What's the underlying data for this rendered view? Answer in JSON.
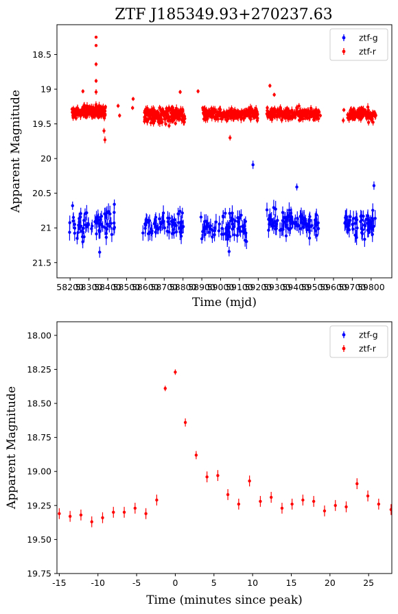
{
  "chart_data": [
    {
      "type": "scatter",
      "title": "ZTF J185349.93+270237.63",
      "xlabel": "Time (mjd)",
      "ylabel": "Apparent Magnitude",
      "xlim": [
        58130,
        59910
      ],
      "ylim": [
        21.72,
        18.07
      ],
      "y_inverted": true,
      "xticks": [
        58200,
        58300,
        58400,
        58500,
        58600,
        58700,
        58800,
        58900,
        59000,
        59100,
        59200,
        59300,
        59400,
        59500,
        59600,
        59700,
        59800
      ],
      "yticks": [
        18.5,
        19.0,
        19.5,
        20.0,
        20.5,
        21.0,
        21.5
      ],
      "grid": false,
      "legend_position": "top-right",
      "colors": {
        "ztf-g": "#0000ff",
        "ztf-r": "#ff0000"
      },
      "series": [
        {
          "name": "ztf-g",
          "segments": [
            {
              "x_start": 58195,
              "x_end": 58440,
              "count": 65,
              "mag_center": 20.95,
              "mag_spread": 0.18,
              "err_min": 0.07,
              "err_max": 0.12
            },
            {
              "x_start": 58585,
              "x_end": 58810,
              "count": 62,
              "mag_center": 20.96,
              "mag_spread": 0.17,
              "err_min": 0.07,
              "err_max": 0.12
            },
            {
              "x_start": 58895,
              "x_end": 59145,
              "count": 75,
              "mag_center": 21.0,
              "mag_spread": 0.17,
              "err_min": 0.07,
              "err_max": 0.12
            },
            {
              "x_start": 59245,
              "x_end": 59520,
              "count": 95,
              "mag_center": 20.93,
              "mag_spread": 0.16,
              "err_min": 0.07,
              "err_max": 0.12
            },
            {
              "x_start": 59660,
              "x_end": 59825,
              "count": 60,
              "mag_center": 20.95,
              "mag_spread": 0.16,
              "err_min": 0.07,
              "err_max": 0.12
            }
          ],
          "points": [
            {
              "x": 58213,
              "y": 20.68,
              "err": 0.06
            },
            {
              "x": 58435,
              "y": 20.66,
              "err": 0.07
            },
            {
              "x": 58357,
              "y": 21.35,
              "err": 0.08
            },
            {
              "x": 59172,
              "y": 20.09,
              "err": 0.06
            },
            {
              "x": 59405,
              "y": 20.41,
              "err": 0.05
            },
            {
              "x": 59815,
              "y": 20.39,
              "err": 0.06
            },
            {
              "x": 59045,
              "y": 21.34,
              "err": 0.07
            }
          ]
        },
        {
          "name": "ztf-r",
          "segments": [
            {
              "x_start": 58210,
              "x_end": 58390,
              "count": 170,
              "mag_center": 19.32,
              "mag_spread": 0.08,
              "err_min": 0.03,
              "err_max": 0.06
            },
            {
              "x_start": 58595,
              "x_end": 58810,
              "count": 200,
              "mag_center": 19.38,
              "mag_spread": 0.09,
              "err_min": 0.03,
              "err_max": 0.06
            },
            {
              "x_start": 58905,
              "x_end": 59200,
              "count": 230,
              "mag_center": 19.36,
              "mag_spread": 0.07,
              "err_min": 0.03,
              "err_max": 0.06
            },
            {
              "x_start": 59245,
              "x_end": 59525,
              "count": 220,
              "mag_center": 19.36,
              "mag_spread": 0.07,
              "err_min": 0.03,
              "err_max": 0.06
            },
            {
              "x_start": 59675,
              "x_end": 59825,
              "count": 140,
              "mag_center": 19.36,
              "mag_spread": 0.07,
              "err_min": 0.03,
              "err_max": 0.06
            }
          ],
          "points": [
            {
              "x": 58338,
              "y": 18.25,
              "err": 0.02
            },
            {
              "x": 58338,
              "y": 18.37,
              "err": 0.02
            },
            {
              "x": 58338,
              "y": 18.64,
              "err": 0.03
            },
            {
              "x": 58338,
              "y": 18.88,
              "err": 0.03
            },
            {
              "x": 58338,
              "y": 19.04,
              "err": 0.04
            },
            {
              "x": 58380,
              "y": 19.6,
              "err": 0.04
            },
            {
              "x": 58385,
              "y": 19.73,
              "err": 0.05
            },
            {
              "x": 58268,
              "y": 19.03,
              "err": 0.03
            },
            {
              "x": 58455,
              "y": 19.24,
              "err": 0.03
            },
            {
              "x": 58463,
              "y": 19.38,
              "err": 0.03
            },
            {
              "x": 58535,
              "y": 19.14,
              "err": 0.03
            },
            {
              "x": 58532,
              "y": 19.27,
              "err": 0.03
            },
            {
              "x": 58785,
              "y": 19.04,
              "err": 0.03
            },
            {
              "x": 58880,
              "y": 19.03,
              "err": 0.03
            },
            {
              "x": 58905,
              "y": 19.27,
              "err": 0.03
            },
            {
              "x": 59050,
              "y": 19.7,
              "err": 0.04
            },
            {
              "x": 59262,
              "y": 18.95,
              "err": 0.03
            },
            {
              "x": 59285,
              "y": 19.08,
              "err": 0.03
            },
            {
              "x": 59195,
              "y": 19.45,
              "err": 0.04
            },
            {
              "x": 59530,
              "y": 19.38,
              "err": 0.03
            },
            {
              "x": 59652,
              "y": 19.45,
              "err": 0.04
            },
            {
              "x": 59655,
              "y": 19.3,
              "err": 0.03
            }
          ]
        }
      ]
    },
    {
      "type": "scatter",
      "title": "",
      "xlabel": "Time (minutes since peak)",
      "ylabel": "Apparent Magnitude",
      "xlim": [
        -15.3,
        28.0
      ],
      "ylim": [
        19.75,
        17.9
      ],
      "y_inverted": true,
      "xticks": [
        -15,
        -10,
        -5,
        0,
        5,
        10,
        15,
        20,
        25
      ],
      "yticks": [
        18.0,
        18.25,
        18.5,
        18.75,
        19.0,
        19.25,
        19.5,
        19.75
      ],
      "ytick_labels": [
        "18.00",
        "18.25",
        "18.50",
        "18.75",
        "19.00",
        "19.25",
        "19.50",
        "19.75"
      ],
      "grid": false,
      "legend_position": "top-right",
      "colors": {
        "ztf-g": "#0000ff",
        "ztf-r": "#ff0000"
      },
      "series": [
        {
          "name": "ztf-g",
          "points": []
        },
        {
          "name": "ztf-r",
          "points": [
            {
              "x": -15.0,
              "y": 19.31,
              "err": 0.04
            },
            {
              "x": -13.6,
              "y": 19.33,
              "err": 0.04
            },
            {
              "x": -12.2,
              "y": 19.32,
              "err": 0.04
            },
            {
              "x": -10.8,
              "y": 19.37,
              "err": 0.04
            },
            {
              "x": -9.4,
              "y": 19.34,
              "err": 0.04
            },
            {
              "x": -8.0,
              "y": 19.3,
              "err": 0.04
            },
            {
              "x": -6.6,
              "y": 19.3,
              "err": 0.04
            },
            {
              "x": -5.2,
              "y": 19.27,
              "err": 0.04
            },
            {
              "x": -3.8,
              "y": 19.31,
              "err": 0.04
            },
            {
              "x": -2.4,
              "y": 19.21,
              "err": 0.04
            },
            {
              "x": -1.3,
              "y": 18.39,
              "err": 0.02
            },
            {
              "x": 0.0,
              "y": 18.27,
              "err": 0.02
            },
            {
              "x": 1.3,
              "y": 18.64,
              "err": 0.03
            },
            {
              "x": 2.7,
              "y": 18.88,
              "err": 0.03
            },
            {
              "x": 4.1,
              "y": 19.04,
              "err": 0.04
            },
            {
              "x": 5.5,
              "y": 19.03,
              "err": 0.04
            },
            {
              "x": 6.8,
              "y": 19.17,
              "err": 0.04
            },
            {
              "x": 8.2,
              "y": 19.24,
              "err": 0.04
            },
            {
              "x": 9.6,
              "y": 19.07,
              "err": 0.04
            },
            {
              "x": 11.0,
              "y": 19.22,
              "err": 0.04
            },
            {
              "x": 12.4,
              "y": 19.19,
              "err": 0.04
            },
            {
              "x": 13.8,
              "y": 19.27,
              "err": 0.04
            },
            {
              "x": 15.1,
              "y": 19.24,
              "err": 0.04
            },
            {
              "x": 16.5,
              "y": 19.21,
              "err": 0.04
            },
            {
              "x": 17.9,
              "y": 19.22,
              "err": 0.04
            },
            {
              "x": 19.3,
              "y": 19.29,
              "err": 0.04
            },
            {
              "x": 20.7,
              "y": 19.25,
              "err": 0.04
            },
            {
              "x": 22.1,
              "y": 19.26,
              "err": 0.04
            },
            {
              "x": 23.5,
              "y": 19.09,
              "err": 0.04
            },
            {
              "x": 24.9,
              "y": 19.18,
              "err": 0.04
            },
            {
              "x": 26.3,
              "y": 19.24,
              "err": 0.04
            },
            {
              "x": 27.9,
              "y": 19.28,
              "err": 0.04
            }
          ]
        }
      ]
    }
  ]
}
